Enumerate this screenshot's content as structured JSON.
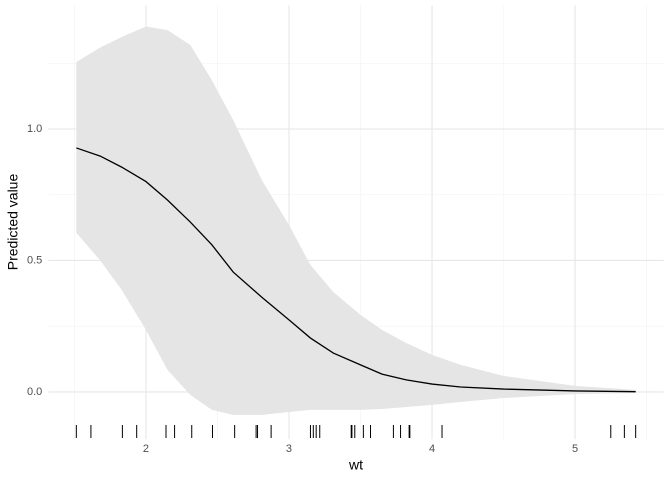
{
  "chart_data": {
    "type": "line",
    "x_label": "wt",
    "y_label": "Predicted value",
    "x": [
      1.513,
      1.68,
      1.83,
      2.0,
      2.15,
      2.31,
      2.46,
      2.61,
      2.81,
      3.0,
      3.15,
      3.31,
      3.5,
      3.65,
      3.82,
      4.0,
      4.2,
      4.5,
      5.0,
      5.424
    ],
    "values": [
      0.928,
      0.897,
      0.855,
      0.8,
      0.73,
      0.646,
      0.56,
      0.456,
      0.36,
      0.274,
      0.205,
      0.148,
      0.103,
      0.068,
      0.046,
      0.03,
      0.019,
      0.011,
      0.004,
      0.001
    ],
    "upper": [
      1.255,
      1.31,
      1.35,
      1.39,
      1.376,
      1.32,
      1.186,
      1.034,
      0.806,
      0.635,
      0.483,
      0.38,
      0.293,
      0.236,
      0.186,
      0.141,
      0.103,
      0.061,
      0.023,
      0.008
    ],
    "lower": [
      0.605,
      0.5,
      0.388,
      0.236,
      0.084,
      -0.011,
      -0.068,
      -0.087,
      -0.087,
      -0.076,
      -0.068,
      -0.068,
      -0.068,
      -0.065,
      -0.057,
      -0.049,
      -0.038,
      -0.023,
      -0.008,
      -0.004
    ],
    "rug": [
      1.513,
      1.615,
      1.835,
      1.935,
      2.14,
      2.2,
      2.32,
      2.465,
      2.62,
      2.77,
      2.78,
      2.875,
      3.15,
      3.17,
      3.19,
      3.215,
      3.435,
      3.44,
      3.46,
      3.52,
      3.57,
      3.73,
      3.78,
      3.84,
      3.845,
      4.07,
      5.25,
      5.345,
      5.424
    ],
    "color": "#000000",
    "band_color": "#e5e5e5",
    "xlim": [
      1.317,
      5.62
    ],
    "ylim": [
      -0.18,
      1.47
    ],
    "xticks": [
      2,
      3,
      4,
      5
    ],
    "xminor": [
      1.5,
      2.5,
      3.5,
      4.5,
      5.5
    ],
    "yticks": [
      {
        "value": 0,
        "label": "0.0"
      },
      {
        "value": 0.5,
        "label": "0.5"
      },
      {
        "value": 1,
        "label": "1.0"
      }
    ],
    "yminor": [
      0.25,
      0.75,
      1.25
    ],
    "grid": true
  }
}
